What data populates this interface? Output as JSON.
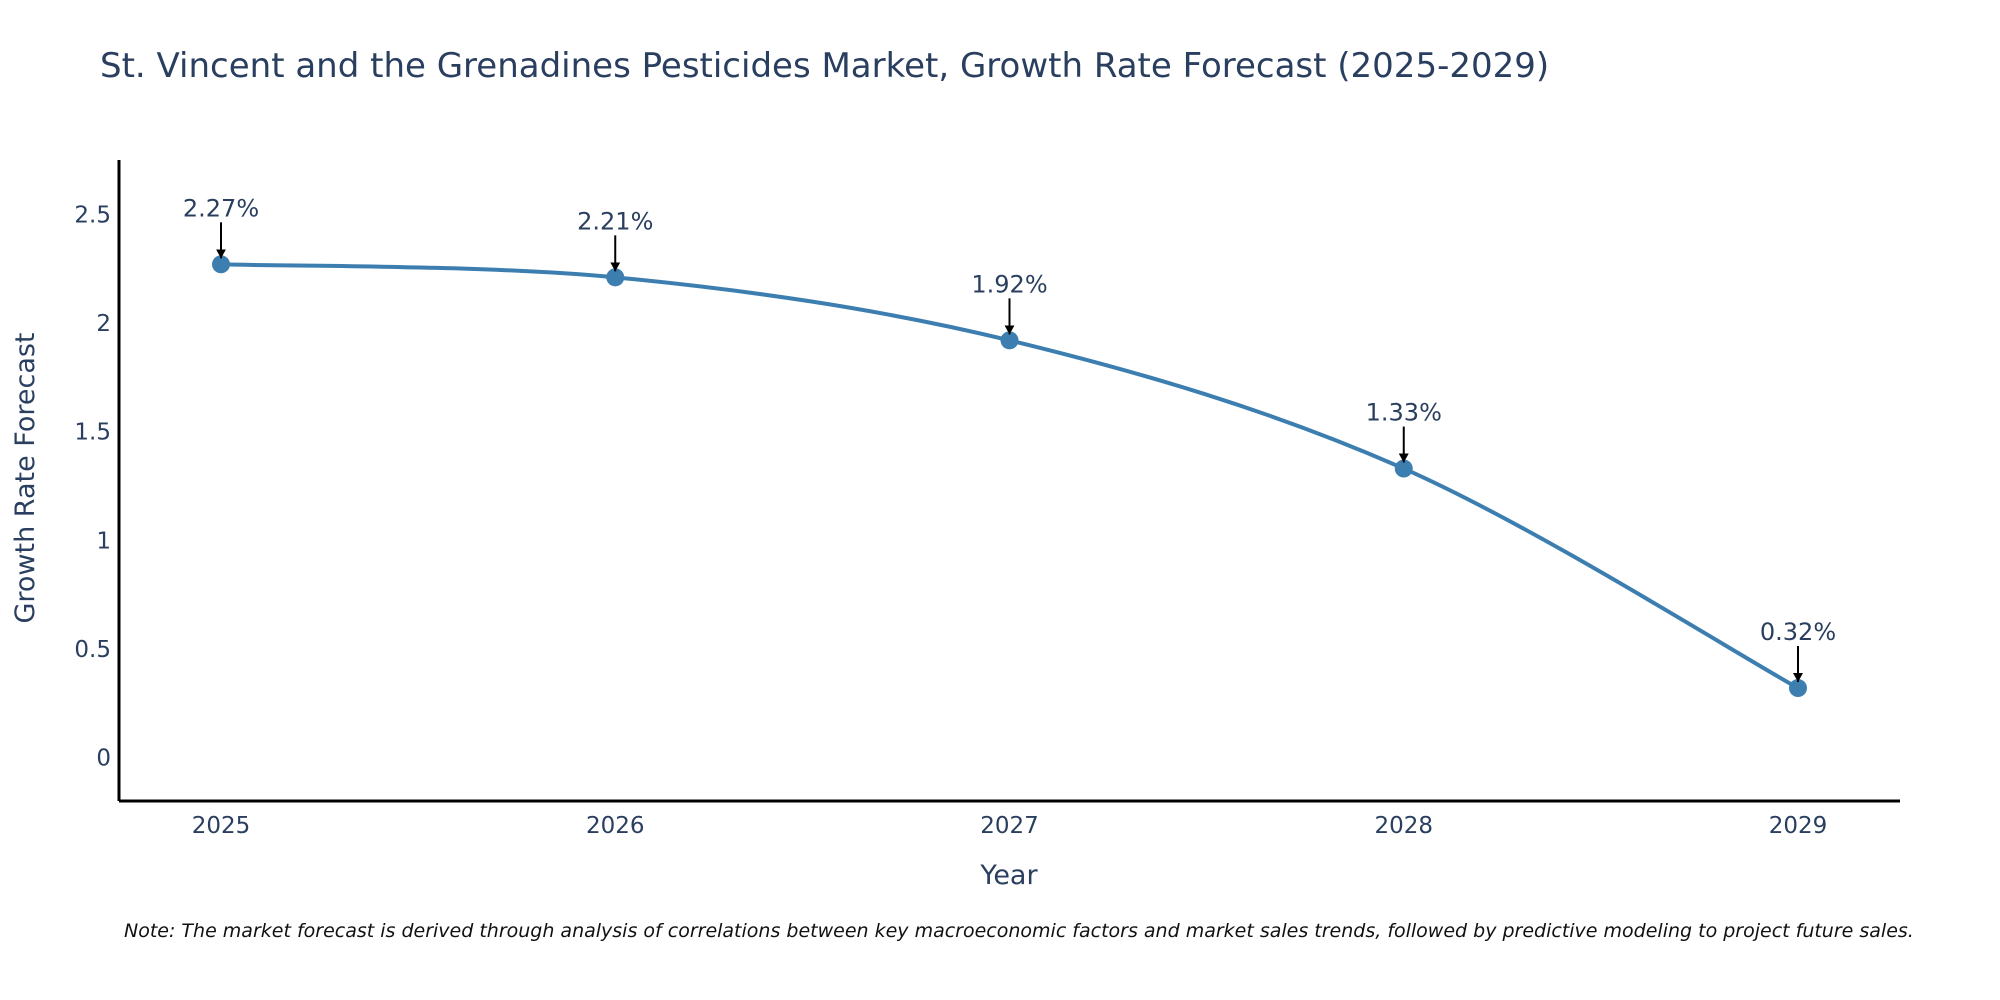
{
  "chart_data": {
    "type": "line",
    "title": "St. Vincent and the Grenadines Pesticides Market, Growth Rate Forecast (2025-2029)",
    "xlabel": "Year",
    "ylabel": "Growth Rate Forecast",
    "categories": [
      "2025",
      "2026",
      "2027",
      "2028",
      "2029"
    ],
    "values": [
      2.27,
      2.21,
      1.92,
      1.33,
      0.32
    ],
    "data_labels": [
      "2.27%",
      "2.21%",
      "1.92%",
      "1.33%",
      "0.32%"
    ],
    "ylim": [
      -0.2,
      2.75
    ],
    "yticks": [
      0,
      0.5,
      1,
      1.5,
      2,
      2.5
    ],
    "ytick_labels": [
      "0",
      "0.5",
      "1",
      "1.5",
      "2",
      "2.5"
    ],
    "grid": false,
    "line_color": "#3d7eb0",
    "marker_color": "#3d7eb0",
    "annotation_arrow_color": "#000000"
  },
  "note": "Note: The market forecast is derived through analysis of correlations between key macroeconomic factors and market sales trends, followed by predictive modeling to project future sales."
}
